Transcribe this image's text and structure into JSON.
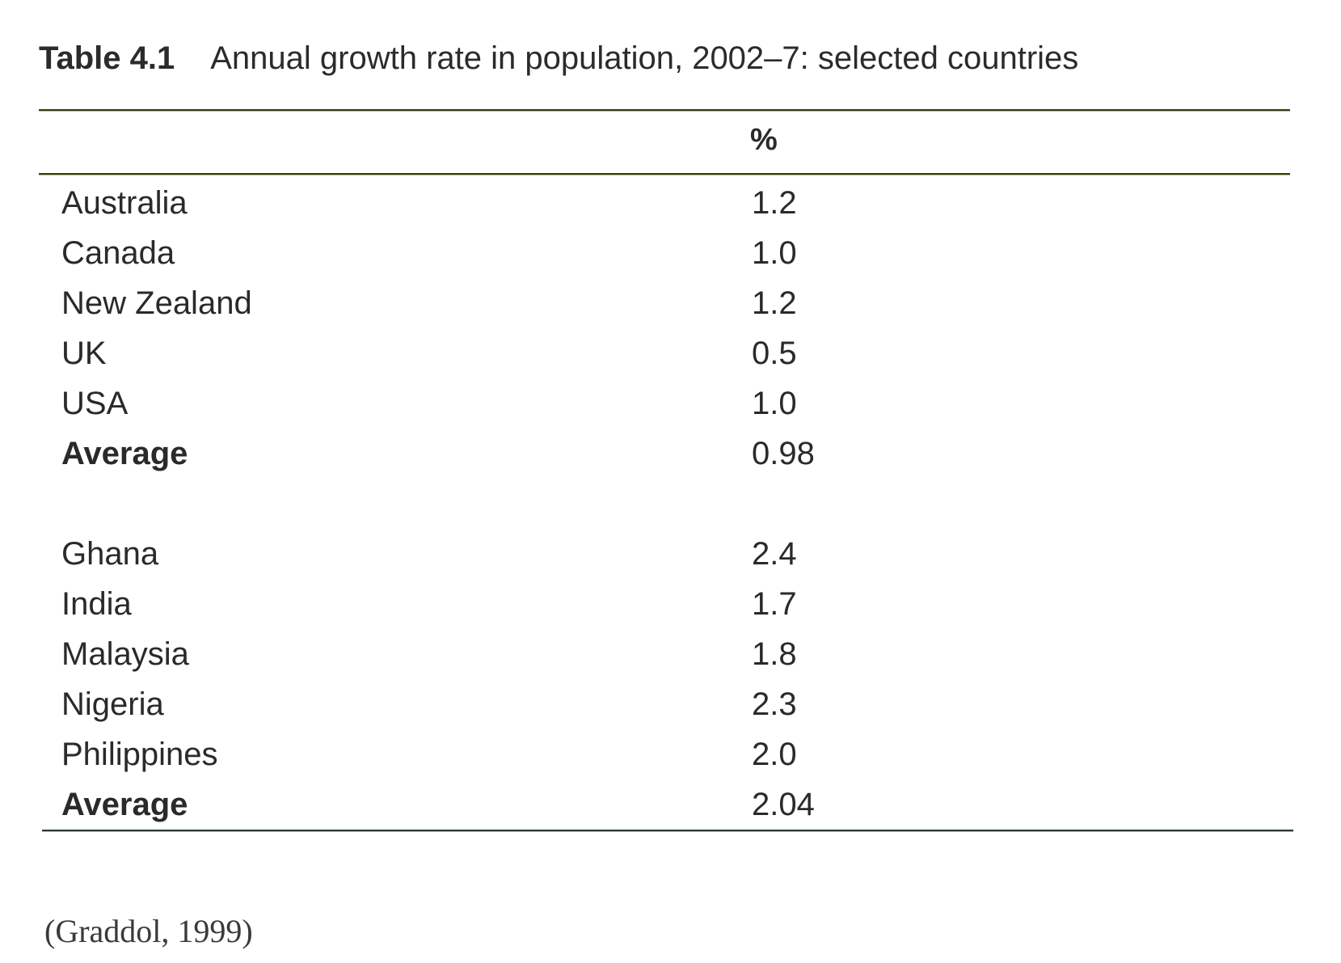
{
  "caption": {
    "label": "Table 4.1",
    "title": "Annual growth rate in population, 2002–7: selected countries"
  },
  "table": {
    "column_header": "%",
    "group1": [
      {
        "country": "Australia",
        "value": "1.2"
      },
      {
        "country": "Canada",
        "value": "1.0"
      },
      {
        "country": "New Zealand",
        "value": "1.2"
      },
      {
        "country": "UK",
        "value": "0.5"
      },
      {
        "country": "USA",
        "value": "1.0"
      },
      {
        "country": "Average",
        "value": "0.98"
      }
    ],
    "group2": [
      {
        "country": "Ghana",
        "value": "2.4"
      },
      {
        "country": "India",
        "value": "1.7"
      },
      {
        "country": "Malaysia",
        "value": "1.8"
      },
      {
        "country": "Nigeria",
        "value": "2.3"
      },
      {
        "country": "Philippines",
        "value": "2.0"
      },
      {
        "country": "Average",
        "value": "2.04"
      }
    ]
  },
  "source": "(Graddol, 1999)"
}
